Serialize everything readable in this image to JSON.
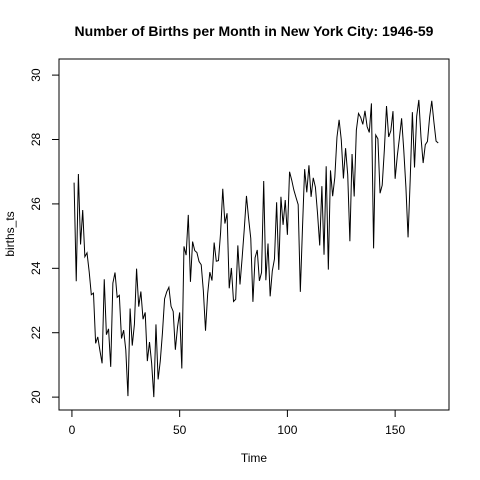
{
  "chart_data": {
    "type": "line",
    "title": "Number of Births per Month in New York City: 1946-59",
    "xlabel": "Time",
    "ylabel": "births_ts",
    "xlim": [
      -6,
      175
    ],
    "ylim": [
      19.6,
      30.5
    ],
    "grid": false,
    "x_ticks": [
      "0",
      "50",
      "100",
      "150"
    ],
    "x_tick_values": [
      0,
      50,
      100,
      150
    ],
    "y_ticks": [
      "20",
      "22",
      "24",
      "26",
      "28",
      "30"
    ],
    "y_tick_values": [
      20,
      22,
      24,
      26,
      28,
      30
    ],
    "series": [
      {
        "x_start": 1,
        "x_step": 1,
        "values": [
          26.66,
          23.6,
          26.93,
          24.74,
          25.81,
          24.36,
          24.48,
          23.9,
          23.18,
          23.23,
          21.67,
          21.87,
          21.44,
          21.05,
          23.66,
          21.94,
          22.12,
          20.94,
          23.54,
          23.87,
          23.1,
          23.16,
          21.82,
          22.08,
          21.46,
          20.03,
          22.75,
          21.6,
          22.26,
          23.99,
          22.81,
          23.28,
          22.42,
          22.63,
          21.12,
          21.71,
          21.05,
          20.0,
          22.26,
          20.55,
          21.12,
          21.99,
          23.05,
          23.27,
          23.41,
          22.82,
          22.66,
          21.47,
          22.17,
          22.63,
          20.89,
          24.68,
          24.41,
          25.66,
          23.58,
          24.83,
          24.55,
          24.49,
          24.21,
          24.11,
          23.3,
          22.06,
          23.21,
          23.88,
          23.62,
          24.8,
          24.22,
          24.24,
          25.11,
          26.47,
          25.39,
          25.71,
          23.38,
          24.01,
          22.97,
          23.04,
          24.71,
          23.5,
          24.33,
          25.23,
          26.25,
          25.55,
          24.93,
          22.96,
          24.33,
          24.57,
          23.61,
          23.87,
          26.71,
          23.63,
          24.77,
          23.13,
          23.92,
          24.29,
          26.05,
          23.95,
          26.22,
          25.35,
          26.12,
          25.04,
          27.0,
          26.74,
          26.43,
          26.2,
          25.98,
          23.27,
          25.25,
          27.08,
          26.36,
          27.2,
          26.22,
          26.81,
          26.52,
          25.69,
          24.71,
          26.55,
          24.42,
          27.17,
          23.96,
          27.04,
          26.24,
          26.82,
          28.07,
          28.61,
          27.99,
          26.79,
          27.73,
          26.9,
          24.84,
          27.55,
          26.23,
          28.29,
          28.81,
          28.69,
          28.47,
          28.89,
          28.4,
          28.22,
          29.12,
          24.62,
          28.14,
          28.02,
          26.33,
          26.58,
          27.68,
          29.04,
          28.08,
          28.27,
          28.88,
          26.78,
          27.49,
          28.05,
          28.66,
          27.68,
          26.52,
          24.96,
          26.77,
          28.85,
          27.13,
          28.72,
          29.23,
          28.07,
          27.27,
          27.84,
          27.94,
          28.69,
          29.2,
          28.54,
          27.95,
          27.89
        ]
      }
    ]
  }
}
